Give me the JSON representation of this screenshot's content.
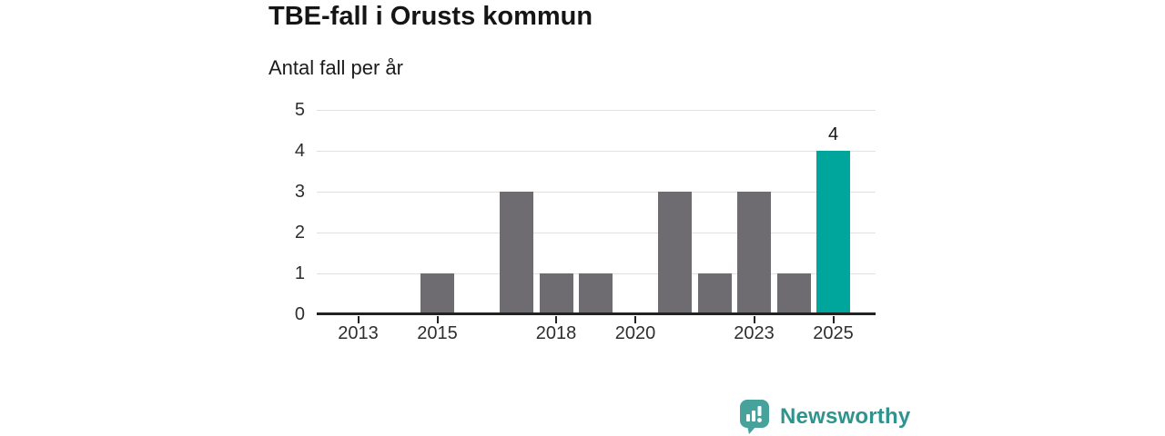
{
  "header": {
    "title": "TBE-fall i Orusts kommun",
    "subtitle": "Antal fall per år"
  },
  "chart_data": {
    "type": "bar",
    "title": "TBE-fall i Orusts kommun",
    "subtitle": "Antal fall per år",
    "categories": [
      "2013",
      "2014",
      "2015",
      "2016",
      "2017",
      "2018",
      "2019",
      "2020",
      "2021",
      "2022",
      "2023",
      "2024",
      "2025"
    ],
    "values": [
      0,
      0,
      1,
      0,
      3,
      1,
      1,
      0,
      3,
      1,
      3,
      1,
      4
    ],
    "highlight_category": "2025",
    "bar_value_label": {
      "category": "2025",
      "text": "4"
    },
    "x_tick_labels": [
      "2013",
      "2015",
      "2018",
      "2020",
      "2023",
      "2025"
    ],
    "y_tick_labels": [
      "0",
      "1",
      "2",
      "3",
      "4",
      "5"
    ],
    "ylim": [
      0,
      5
    ],
    "grid": true,
    "legend": "none",
    "colors": {
      "bar": "#6e6b71",
      "highlight": "#00a69c",
      "gridline": "#e0e0e0",
      "axis": "#222222",
      "tick_text": "#2e2e2e"
    }
  },
  "footer": {
    "brand": "Newsworthy",
    "logo_icon": "bar-chart-speech-bubble-icon",
    "brand_color": "#2f948d",
    "icon_color": "#46a29a"
  }
}
